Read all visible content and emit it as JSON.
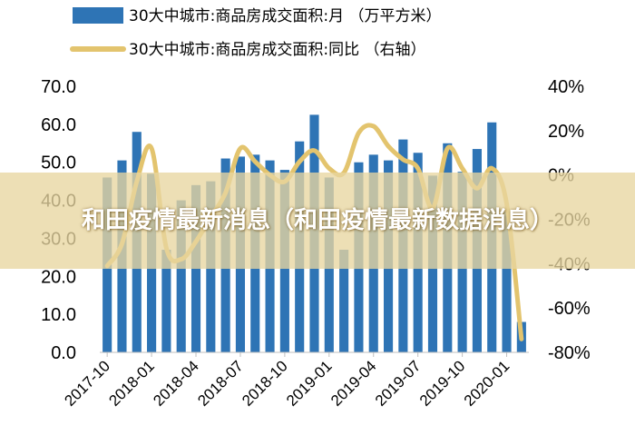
{
  "banner": {
    "text": "和田疫情最新消息（和田疫情最新数据消息）"
  },
  "colors": {
    "bar": "#2E74B5",
    "line": "#E3C46E"
  },
  "chart_data": {
    "type": "bar+line",
    "legend": [
      {
        "name": "30大中城市:商品房成交面积:月 （万平方米）",
        "kind": "bar"
      },
      {
        "name": "30大中城市:商品房成交面积:同比 （右轴）",
        "kind": "line"
      }
    ],
    "legend_placement": "top",
    "y_left": {
      "lim": [
        0,
        70
      ],
      "ticks": [
        "0.0",
        "10.0",
        "20.0",
        "30.0",
        "40.0",
        "50.0",
        "60.0",
        "70.0"
      ]
    },
    "y_right": {
      "lim": [
        -80,
        40
      ],
      "ticks": [
        "-80%",
        "-60%",
        "-40%",
        "-20%",
        "0%",
        "20%",
        "40%"
      ]
    },
    "x_tick_labels": [
      "2017-10",
      "2018-01",
      "2018-04",
      "2018-07",
      "2018-10",
      "2019-01",
      "2019-04",
      "2019-07",
      "2019-10",
      "2020-01"
    ],
    "categories": [
      "2017-10",
      "2017-11",
      "2017-12",
      "2018-01",
      "2018-02",
      "2018-03",
      "2018-04",
      "2018-05",
      "2018-06",
      "2018-07",
      "2018-08",
      "2018-09",
      "2018-10",
      "2018-11",
      "2018-12",
      "2019-01",
      "2019-02",
      "2019-03",
      "2019-04",
      "2019-05",
      "2019-06",
      "2019-07",
      "2019-08",
      "2019-09",
      "2019-10",
      "2019-11",
      "2019-12",
      "2020-01",
      "2020-02"
    ],
    "series": [
      {
        "name": "30大中城市:商品房成交面积:月 （万平方米）",
        "axis": "left",
        "type": "bar",
        "values": [
          46.0,
          50.5,
          58.0,
          47.0,
          27.0,
          40.0,
          44.0,
          45.0,
          51.0,
          51.5,
          52.0,
          50.5,
          48.0,
          55.5,
          62.5,
          46.0,
          27.0,
          50.0,
          52.0,
          50.5,
          56.0,
          52.5,
          46.5,
          55.0,
          47.5,
          53.5,
          60.5,
          37.0,
          8.0
        ]
      },
      {
        "name": "30大中城市:商品房成交面积:同比 （右轴）",
        "axis": "right",
        "type": "line",
        "values": [
          -41,
          -31,
          -3,
          12,
          -33,
          -38,
          -30,
          -19,
          -8,
          12,
          6,
          0,
          -3,
          6,
          11,
          3,
          1,
          19,
          22,
          13,
          7,
          3,
          -15,
          12,
          3,
          -6,
          3,
          -13,
          -74
        ]
      }
    ]
  }
}
